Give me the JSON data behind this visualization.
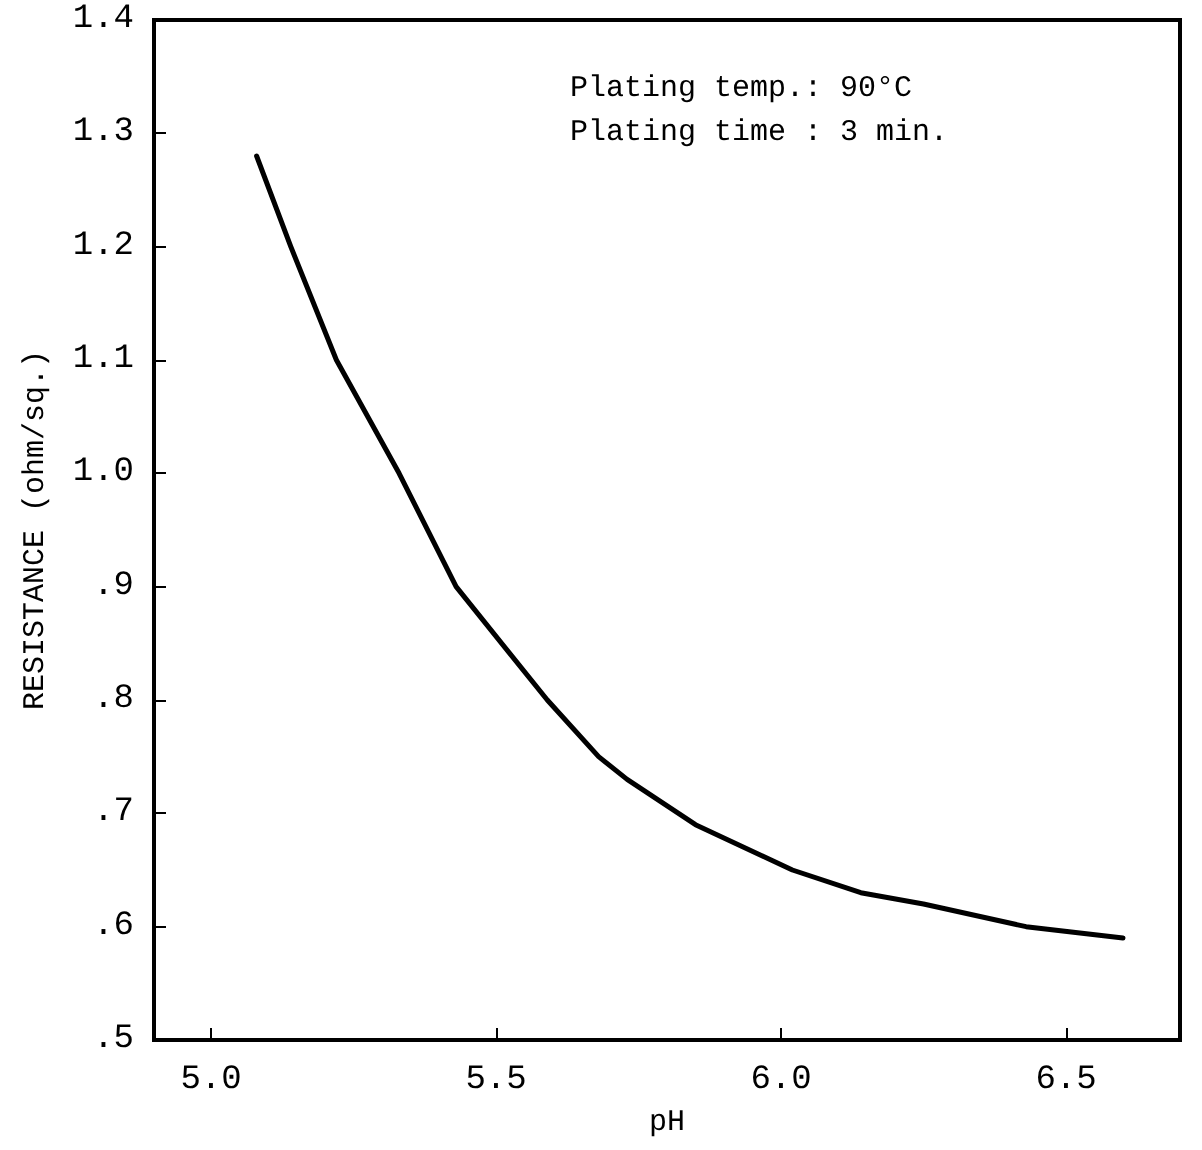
{
  "chart_data": {
    "type": "line",
    "xlabel": "pH",
    "ylabel": "RESISTANCE (ohm/sq.)",
    "annotations": [
      "Plating temp.: 90°C",
      "Plating time : 3 min."
    ],
    "x": [
      5.08,
      5.14,
      5.22,
      5.33,
      5.43,
      5.59,
      5.68,
      5.73,
      5.85,
      6.02,
      6.14,
      6.25,
      6.43,
      6.6
    ],
    "series": [
      {
        "color": "#000000",
        "values": [
          1.28,
          1.2,
          1.1,
          1.0,
          0.9,
          0.8,
          0.75,
          0.73,
          0.69,
          0.65,
          0.63,
          0.62,
          0.6,
          0.59
        ]
      }
    ],
    "xlim": [
      4.9,
      6.7
    ],
    "ylim": [
      0.5,
      1.4
    ],
    "xticks": [
      {
        "value": 5,
        "label": "5.0"
      },
      {
        "value": 5.5,
        "label": "5.5"
      },
      {
        "value": 6,
        "label": "6.0"
      },
      {
        "value": 6.5,
        "label": "6.5"
      }
    ],
    "yticks": [
      {
        "value": 0.5,
        "label": ".5"
      },
      {
        "value": 0.6,
        "label": ".6"
      },
      {
        "value": 0.7,
        "label": ".7"
      },
      {
        "value": 0.8,
        "label": ".8"
      },
      {
        "value": 0.9,
        "label": ".9"
      },
      {
        "value": 1.0,
        "label": "1.0"
      },
      {
        "value": 1.1,
        "label": "1.1"
      },
      {
        "value": 1.2,
        "label": "1.2"
      },
      {
        "value": 1.3,
        "label": "1.3"
      },
      {
        "value": 1.4,
        "label": "1.4"
      }
    ],
    "grid": false,
    "marker": "none",
    "line_style": "solid"
  }
}
